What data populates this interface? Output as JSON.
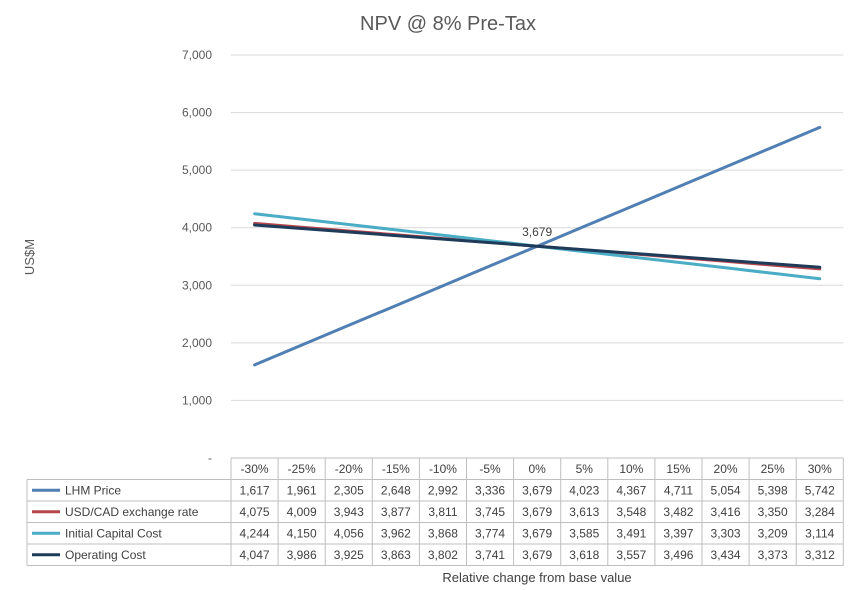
{
  "chart_data": {
    "type": "line",
    "title": "NPV @ 8% Pre-Tax",
    "xlabel": "Relative change from base value",
    "ylabel": "US$M",
    "ylim": [
      0,
      7000
    ],
    "yticks": [
      {
        "value": 0,
        "label": "-"
      },
      {
        "value": 1000,
        "label": "1,000"
      },
      {
        "value": 2000,
        "label": "2,000"
      },
      {
        "value": 3000,
        "label": "3,000"
      },
      {
        "value": 4000,
        "label": "4,000"
      },
      {
        "value": 5000,
        "label": "5,000"
      },
      {
        "value": 6000,
        "label": "6,000"
      },
      {
        "value": 7000,
        "label": "7,000"
      }
    ],
    "grid": true,
    "categories": [
      "-30%",
      "-25%",
      "-20%",
      "-15%",
      "-10%",
      "-5%",
      "0%",
      "5%",
      "10%",
      "15%",
      "20%",
      "25%",
      "30%"
    ],
    "series": [
      {
        "name": "LHM Price",
        "color": "#4f7fb3",
        "values": [
          1617,
          1961,
          2305,
          2648,
          2992,
          3336,
          3679,
          4023,
          4367,
          4711,
          5054,
          5398,
          5742
        ],
        "labels": [
          "1,617",
          "1,961",
          "2,305",
          "2,648",
          "2,992",
          "3,336",
          "3,679",
          "4,023",
          "4,367",
          "4,711",
          "5,054",
          "5,398",
          "5,742"
        ]
      },
      {
        "name": "USD/CAD exchange rate",
        "color": "#b5474b",
        "values": [
          4075,
          4009,
          3943,
          3877,
          3811,
          3745,
          3679,
          3613,
          3548,
          3482,
          3416,
          3350,
          3284
        ],
        "labels": [
          "4,075",
          "4,009",
          "3,943",
          "3,877",
          "3,811",
          "3,745",
          "3,679",
          "3,613",
          "3,548",
          "3,482",
          "3,416",
          "3,350",
          "3,284"
        ]
      },
      {
        "name": "Initial Capital Cost",
        "color": "#4bacc6",
        "values": [
          4244,
          4150,
          4056,
          3962,
          3868,
          3774,
          3679,
          3585,
          3491,
          3397,
          3303,
          3209,
          3114
        ],
        "labels": [
          "4,244",
          "4,150",
          "4,056",
          "3,962",
          "3,868",
          "3,774",
          "3,679",
          "3,585",
          "3,491",
          "3,397",
          "3,303",
          "3,209",
          "3,114"
        ]
      },
      {
        "name": "Operating Cost",
        "color": "#1f3b5a",
        "values": [
          4047,
          3986,
          3925,
          3863,
          3802,
          3741,
          3679,
          3618,
          3557,
          3496,
          3434,
          3373,
          3312
        ],
        "labels": [
          "4,047",
          "3,986",
          "3,925",
          "3,863",
          "3,802",
          "3,741",
          "3,679",
          "3,618",
          "3,557",
          "3,496",
          "3,434",
          "3,373",
          "3,312"
        ]
      }
    ],
    "annotations": [
      {
        "category": "0%",
        "value": 3679,
        "text": "3,679"
      }
    ]
  }
}
